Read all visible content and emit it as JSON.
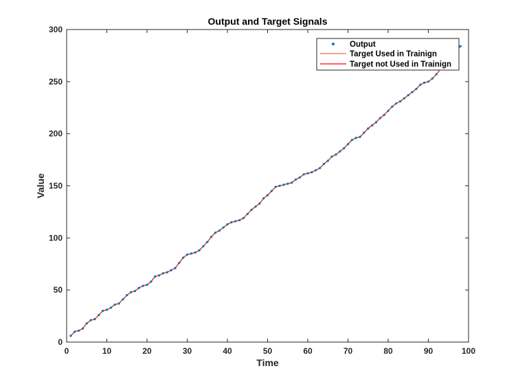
{
  "chart_data": {
    "type": "line",
    "title": "Output and Target Signals",
    "xlabel": "Time",
    "ylabel": "Value",
    "xlim": [
      0,
      100
    ],
    "ylim": [
      0,
      300
    ],
    "xticks": [
      0,
      10,
      20,
      30,
      40,
      50,
      60,
      70,
      80,
      90,
      100
    ],
    "yticks": [
      0,
      50,
      100,
      150,
      200,
      250,
      300
    ],
    "grid": false,
    "legend_position": "top-right",
    "x": [
      1,
      2,
      3,
      4,
      5,
      6,
      7,
      8,
      9,
      10,
      11,
      12,
      13,
      14,
      15,
      16,
      17,
      18,
      19,
      20,
      21,
      22,
      23,
      24,
      25,
      26,
      27,
      28,
      29,
      30,
      31,
      32,
      33,
      34,
      35,
      36,
      37,
      38,
      39,
      40,
      41,
      42,
      43,
      44,
      45,
      46,
      47,
      48,
      49,
      50,
      51,
      52,
      53,
      54,
      55,
      56,
      57,
      58,
      59,
      60,
      61,
      62,
      63,
      64,
      65,
      66,
      67,
      68,
      69,
      70,
      71,
      72,
      73,
      74,
      75,
      76,
      77,
      78,
      79,
      80,
      81,
      82,
      83,
      84,
      85,
      86,
      87,
      88,
      89,
      90,
      91,
      92,
      93,
      94,
      95,
      96,
      97,
      98
    ],
    "series": [
      {
        "name": "Output",
        "style": "markers",
        "color": "#0072BD",
        "values": [
          6,
          10,
          11,
          13,
          18,
          21,
          22,
          26,
          30,
          31,
          33,
          36,
          37,
          41,
          45,
          48,
          49,
          52,
          54,
          55,
          58,
          63,
          64,
          66,
          67,
          69,
          71,
          76,
          81,
          84,
          85,
          86,
          88,
          92,
          96,
          101,
          105,
          107,
          110,
          113,
          115,
          116,
          117,
          119,
          123,
          127,
          130,
          133,
          138,
          141,
          145,
          149,
          150,
          151,
          152,
          153,
          156,
          158,
          161,
          162,
          163,
          165,
          167,
          171,
          174,
          178,
          180,
          183,
          186,
          190,
          194,
          196,
          197,
          201,
          205,
          208,
          211,
          215,
          218,
          222,
          226,
          229,
          231,
          234,
          237,
          240,
          243,
          247,
          249,
          250,
          253,
          257,
          262,
          266,
          269,
          275,
          280,
          284
        ]
      },
      {
        "name": "Target Used in Trainign",
        "style": "line",
        "color": "#D95319",
        "values": [
          6,
          10,
          11,
          13,
          18,
          21,
          22,
          26,
          30,
          31,
          33,
          36,
          37,
          41,
          45,
          48,
          49,
          52,
          54,
          55,
          58,
          63,
          64,
          66,
          67,
          69,
          71,
          76,
          81,
          84,
          85,
          86,
          88,
          92,
          96,
          101,
          105,
          107,
          110,
          113,
          115,
          116,
          117,
          119,
          123,
          127,
          130,
          133,
          138,
          141,
          145,
          149,
          150,
          151,
          152,
          153,
          156,
          158,
          161,
          162,
          163,
          165,
          167,
          171,
          174,
          178,
          180,
          183,
          186,
          190,
          194,
          196,
          197,
          201,
          205,
          208,
          211,
          215,
          218,
          222,
          226,
          229,
          231,
          234,
          237,
          240,
          243,
          247,
          249,
          250,
          253,
          257,
          262,
          266,
          269,
          275,
          280,
          284
        ]
      },
      {
        "name": "Target not Used in Trainign",
        "style": "line",
        "color": "#FF0000",
        "values": [
          6,
          10,
          11,
          13,
          18,
          21,
          22,
          26,
          30,
          31,
          33,
          36,
          37,
          41,
          45,
          48,
          49,
          52,
          54,
          55,
          58,
          63,
          64,
          66,
          67,
          69,
          71,
          76,
          81,
          84,
          85,
          86,
          88,
          92,
          96,
          101,
          105,
          107,
          110,
          113,
          115,
          116,
          117,
          119,
          123,
          127,
          130,
          133,
          138,
          141,
          145,
          149,
          150,
          151,
          152,
          153,
          156,
          158,
          161,
          162,
          163,
          165,
          167,
          171,
          174,
          178,
          180,
          183,
          186,
          190,
          194,
          196,
          197,
          201,
          205,
          208,
          211,
          215,
          218,
          222,
          226,
          229,
          231,
          234,
          237,
          240,
          243,
          247,
          249,
          250,
          253,
          257,
          262,
          266,
          269,
          275,
          280,
          284
        ]
      }
    ]
  }
}
